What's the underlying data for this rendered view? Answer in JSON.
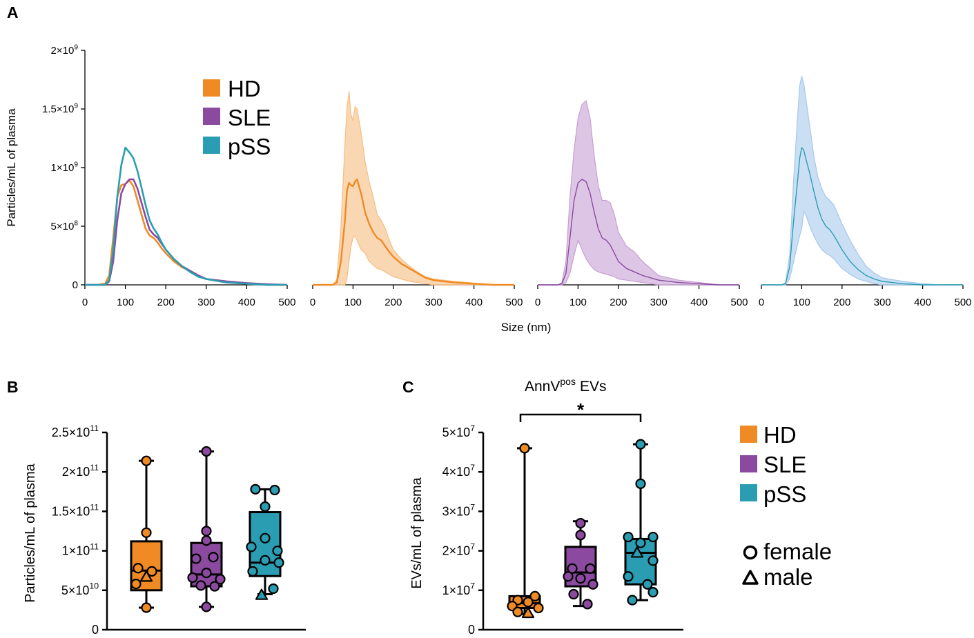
{
  "colors": {
    "HD": "#F08A24",
    "SLE": "#8B4AA0",
    "pSS": "#2A9DB3",
    "bandHD": "#F6BD80",
    "bandSLE": "#C79FD4",
    "bandPSS": "#A6C8EC",
    "axis": "#000000"
  },
  "panel_labels": {
    "a": "A",
    "b": "B",
    "c": "C"
  },
  "legend_A": {
    "entries": [
      "HD",
      "SLE",
      "pSS"
    ]
  },
  "legend_C": {
    "entries": [
      "HD",
      "SLE",
      "pSS"
    ],
    "shape_female": "female",
    "shape_male": "male"
  },
  "significance": {
    "star": "*"
  },
  "superscript": {
    "e9": "9",
    "e8": "8",
    "e11": "11",
    "e10": "10",
    "e7": "7",
    "pos": "pos"
  },
  "chart_data": [
    {
      "id": "A-overlay",
      "type": "line",
      "xlabel": "Size (nm)",
      "ylabel": "Particles/mL of plasma",
      "xlim": [
        0,
        500
      ],
      "ylim": [
        0,
        2000000000
      ],
      "xticks": [
        "0",
        "100",
        "200",
        "300",
        "400",
        "500"
      ],
      "yticks": [
        {
          "value": 0,
          "label": "0"
        },
        {
          "value": 500000000,
          "mant": "5×10",
          "exp": "8"
        },
        {
          "value": 1000000000,
          "mant": "1×10",
          "exp": "9"
        },
        {
          "value": 1500000000,
          "mant": "1.5×10",
          "exp": "9"
        },
        {
          "value": 2000000000,
          "mant": "2×10",
          "exp": "9"
        }
      ],
      "x": [
        0,
        30,
        50,
        60,
        70,
        80,
        90,
        100,
        110,
        120,
        130,
        140,
        150,
        160,
        170,
        180,
        190,
        200,
        220,
        240,
        260,
        280,
        300,
        350,
        400,
        450,
        500
      ],
      "series": [
        {
          "name": "HD",
          "values": [
            0,
            0,
            0.01,
            0.08,
            0.4,
            0.75,
            0.85,
            0.86,
            0.89,
            0.84,
            0.72,
            0.6,
            0.48,
            0.42,
            0.4,
            0.36,
            0.31,
            0.27,
            0.2,
            0.15,
            0.12,
            0.08,
            0.05,
            0.02,
            0.01,
            0,
            0
          ]
        },
        {
          "name": "SLE",
          "values": [
            0,
            0,
            0,
            0.03,
            0.2,
            0.55,
            0.78,
            0.86,
            0.9,
            0.9,
            0.82,
            0.7,
            0.58,
            0.47,
            0.43,
            0.4,
            0.35,
            0.3,
            0.22,
            0.16,
            0.12,
            0.08,
            0.05,
            0.03,
            0.015,
            0.005,
            0
          ]
        },
        {
          "name": "pSS",
          "values": [
            0,
            0,
            0,
            0.04,
            0.3,
            0.75,
            1.02,
            1.17,
            1.13,
            1.08,
            0.97,
            0.83,
            0.68,
            0.55,
            0.48,
            0.43,
            0.36,
            0.3,
            0.22,
            0.16,
            0.11,
            0.07,
            0.05,
            0.02,
            0.01,
            0,
            0
          ]
        }
      ]
    },
    {
      "id": "A-HD",
      "type": "area",
      "xlim": [
        0,
        500
      ],
      "ylim": [
        0,
        2000000000
      ],
      "xticks": [
        "0",
        "100",
        "200",
        "300",
        "400",
        "500"
      ],
      "x": [
        0,
        50,
        60,
        70,
        80,
        85,
        90,
        95,
        100,
        105,
        110,
        120,
        130,
        140,
        150,
        160,
        170,
        180,
        190,
        200,
        220,
        240,
        260,
        280,
        300,
        350,
        400,
        450,
        500
      ],
      "series": [
        {
          "name": "mean",
          "values": [
            0,
            0,
            0.02,
            0.2,
            0.55,
            0.8,
            0.87,
            0.85,
            0.84,
            0.88,
            0.9,
            0.78,
            0.62,
            0.52,
            0.45,
            0.4,
            0.38,
            0.33,
            0.28,
            0.24,
            0.18,
            0.14,
            0.1,
            0.06,
            0.04,
            0.02,
            0.01,
            0,
            0
          ]
        },
        {
          "name": "upper",
          "values": [
            0,
            0,
            0.05,
            0.5,
            1.2,
            1.5,
            1.65,
            1.45,
            1.4,
            1.52,
            1.5,
            1.3,
            1.05,
            0.88,
            0.75,
            0.6,
            0.55,
            0.48,
            0.38,
            0.3,
            0.22,
            0.16,
            0.11,
            0.07,
            0.05,
            0.03,
            0.015,
            0,
            0
          ]
        },
        {
          "name": "lower",
          "values": [
            0,
            0,
            0,
            0,
            0,
            0.05,
            0.2,
            0.33,
            0.4,
            0.42,
            0.38,
            0.3,
            0.27,
            0.2,
            0.17,
            0.14,
            0.13,
            0.11,
            0.09,
            0.07,
            0.05,
            0.03,
            0.02,
            0.01,
            0,
            0,
            0,
            0,
            0
          ]
        }
      ]
    },
    {
      "id": "A-SLE",
      "type": "area",
      "xlim": [
        0,
        500
      ],
      "ylim": [
        0,
        2000000000
      ],
      "xticks": [
        "0",
        "100",
        "200",
        "300",
        "400",
        "500"
      ],
      "x": [
        0,
        50,
        60,
        70,
        80,
        90,
        100,
        110,
        120,
        130,
        140,
        150,
        160,
        170,
        180,
        190,
        200,
        220,
        240,
        260,
        280,
        300,
        350,
        400,
        450,
        500
      ],
      "series": [
        {
          "name": "mean",
          "values": [
            0,
            0,
            0.01,
            0.1,
            0.4,
            0.72,
            0.87,
            0.9,
            0.88,
            0.78,
            0.62,
            0.48,
            0.4,
            0.38,
            0.34,
            0.27,
            0.2,
            0.14,
            0.11,
            0.08,
            0.06,
            0.04,
            0.02,
            0.01,
            0,
            0
          ]
        },
        {
          "name": "upper",
          "values": [
            0,
            0,
            0.02,
            0.2,
            0.75,
            1.15,
            1.42,
            1.54,
            1.57,
            1.42,
            1.1,
            0.85,
            0.72,
            0.72,
            0.7,
            0.6,
            0.45,
            0.33,
            0.28,
            0.2,
            0.14,
            0.08,
            0.04,
            0.02,
            0,
            0
          ]
        },
        {
          "name": "lower",
          "values": [
            0,
            0,
            0,
            0.02,
            0.1,
            0.25,
            0.38,
            0.3,
            0.22,
            0.17,
            0.13,
            0.11,
            0.1,
            0.09,
            0.08,
            0.07,
            0.05,
            0.04,
            0.03,
            0.02,
            0.01,
            0,
            0,
            0,
            0,
            0
          ]
        }
      ]
    },
    {
      "id": "A-pSS",
      "type": "area",
      "xlim": [
        0,
        500
      ],
      "ylim": [
        0,
        2000000000
      ],
      "xticks": [
        "0",
        "100",
        "200",
        "300",
        "400",
        "500"
      ],
      "x": [
        0,
        50,
        60,
        70,
        80,
        90,
        95,
        100,
        105,
        110,
        120,
        130,
        140,
        150,
        160,
        170,
        180,
        190,
        200,
        220,
        240,
        260,
        280,
        300,
        350,
        400,
        450,
        500
      ],
      "series": [
        {
          "name": "mean",
          "values": [
            0,
            0,
            0.01,
            0.15,
            0.55,
            0.9,
            1.08,
            1.17,
            1.15,
            1.08,
            0.95,
            0.8,
            0.66,
            0.56,
            0.5,
            0.47,
            0.42,
            0.36,
            0.3,
            0.2,
            0.13,
            0.08,
            0.05,
            0.03,
            0.01,
            0,
            0,
            0
          ]
        },
        {
          "name": "upper",
          "values": [
            0,
            0,
            0.02,
            0.25,
            0.9,
            1.45,
            1.7,
            1.78,
            1.72,
            1.6,
            1.35,
            1.1,
            0.92,
            0.82,
            0.75,
            0.72,
            0.68,
            0.6,
            0.52,
            0.38,
            0.26,
            0.16,
            0.1,
            0.06,
            0.03,
            0.01,
            0,
            0
          ]
        },
        {
          "name": "lower",
          "values": [
            0,
            0,
            0,
            0.05,
            0.2,
            0.35,
            0.42,
            0.48,
            0.62,
            0.6,
            0.5,
            0.42,
            0.35,
            0.3,
            0.27,
            0.25,
            0.22,
            0.18,
            0.14,
            0.09,
            0.05,
            0.03,
            0.01,
            0,
            0,
            0,
            0,
            0
          ]
        }
      ]
    },
    {
      "id": "B",
      "type": "box",
      "ylabel": "Particles/mL of plasma",
      "ylim": [
        0,
        250000000000
      ],
      "yticks": [
        {
          "value": 0,
          "label": "0"
        },
        {
          "value": 50000000000,
          "mant": "5×10",
          "exp": "10"
        },
        {
          "value": 100000000000,
          "mant": "1×10",
          "exp": "11"
        },
        {
          "value": 150000000000,
          "mant": "1.5×10",
          "exp": "11"
        },
        {
          "value": 200000000000,
          "mant": "2×10",
          "exp": "11"
        },
        {
          "value": 250000000000,
          "mant": "2.5×10",
          "exp": "11"
        }
      ],
      "unit": 10000000000.0,
      "groups": [
        {
          "name": "HD",
          "min": 2.8,
          "q1": 5.0,
          "median": 7.5,
          "q3": 11.2,
          "max": 21.4,
          "points": [
            {
              "y": 21.4,
              "dx": 0,
              "s": "f"
            },
            {
              "y": 12.3,
              "dx": 0,
              "s": "f"
            },
            {
              "y": 7.8,
              "dx": -12,
              "s": "f"
            },
            {
              "y": 7.4,
              "dx": 8,
              "s": "f"
            },
            {
              "y": 6.7,
              "dx": 0,
              "s": "m"
            },
            {
              "y": 5.8,
              "dx": -15,
              "s": "f"
            },
            {
              "y": 2.8,
              "dx": 0,
              "s": "f"
            }
          ]
        },
        {
          "name": "SLE",
          "min": 2.9,
          "q1": 5.5,
          "median": 7.0,
          "q3": 11.0,
          "max": 22.6,
          "points": [
            {
              "y": 22.6,
              "dx": 0,
              "s": "f"
            },
            {
              "y": 12.5,
              "dx": 0,
              "s": "f"
            },
            {
              "y": 11.3,
              "dx": 0,
              "s": "f"
            },
            {
              "y": 9.0,
              "dx": -15,
              "s": "f"
            },
            {
              "y": 9.2,
              "dx": 10,
              "s": "f"
            },
            {
              "y": 7.2,
              "dx": 0,
              "s": "f"
            },
            {
              "y": 6.6,
              "dx": -20,
              "s": "f"
            },
            {
              "y": 6.4,
              "dx": 20,
              "s": "f"
            },
            {
              "y": 5.6,
              "dx": -8,
              "s": "f"
            },
            {
              "y": 5.5,
              "dx": 12,
              "s": "f"
            },
            {
              "y": 2.9,
              "dx": 0,
              "s": "f"
            }
          ]
        },
        {
          "name": "pSS",
          "min": 4.5,
          "q1": 6.8,
          "median": 8.5,
          "q3": 14.9,
          "max": 17.8,
          "points": [
            {
              "y": 17.8,
              "dx": -14,
              "s": "f"
            },
            {
              "y": 17.7,
              "dx": 14,
              "s": "f"
            },
            {
              "y": 15.6,
              "dx": 0,
              "s": "f"
            },
            {
              "y": 11.6,
              "dx": 0,
              "s": "f"
            },
            {
              "y": 10.5,
              "dx": -20,
              "s": "f"
            },
            {
              "y": 10.0,
              "dx": 18,
              "s": "f"
            },
            {
              "y": 8.8,
              "dx": 0,
              "s": "f"
            },
            {
              "y": 8.5,
              "dx": 20,
              "s": "f"
            },
            {
              "y": 7.4,
              "dx": -18,
              "s": "f"
            },
            {
              "y": 5.2,
              "dx": 12,
              "s": "f"
            },
            {
              "y": 4.4,
              "dx": -5,
              "s": "m"
            }
          ]
        }
      ]
    },
    {
      "id": "C",
      "type": "box",
      "title_main": "AnnV",
      "title_tail": "EVs",
      "ylabel": "EVs/mL of plasma",
      "ylim": [
        0,
        50000000
      ],
      "yticks": [
        {
          "value": 0,
          "label": "0"
        },
        {
          "value": 10000000,
          "mant": "1×10",
          "exp": "7"
        },
        {
          "value": 20000000,
          "mant": "2×10",
          "exp": "7"
        },
        {
          "value": 30000000,
          "mant": "3×10",
          "exp": "7"
        },
        {
          "value": 40000000,
          "mant": "4×10",
          "exp": "7"
        },
        {
          "value": 50000000,
          "mant": "5×10",
          "exp": "7"
        }
      ],
      "unit": 10000000.0,
      "groups": [
        {
          "name": "HD",
          "min": 0.4,
          "q1": 0.55,
          "median": 0.67,
          "q3": 0.85,
          "max": 4.6,
          "points": [
            {
              "y": 4.6,
              "dx": 0,
              "s": "f"
            },
            {
              "y": 0.85,
              "dx": 15,
              "s": "f"
            },
            {
              "y": 0.75,
              "dx": -10,
              "s": "f"
            },
            {
              "y": 0.7,
              "dx": 5,
              "s": "f"
            },
            {
              "y": 0.6,
              "dx": -18,
              "s": "f"
            },
            {
              "y": 0.45,
              "dx": -10,
              "s": "f"
            },
            {
              "y": 0.42,
              "dx": 5,
              "s": "m"
            },
            {
              "y": 0.55,
              "dx": 20,
              "s": "f"
            }
          ]
        },
        {
          "name": "SLE",
          "min": 0.6,
          "q1": 1.1,
          "median": 1.45,
          "q3": 2.1,
          "max": 2.75,
          "points": [
            {
              "y": 2.7,
              "dx": 0,
              "s": "f"
            },
            {
              "y": 2.4,
              "dx": 0,
              "s": "f"
            },
            {
              "y": 1.55,
              "dx": -12,
              "s": "f"
            },
            {
              "y": 1.55,
              "dx": 14,
              "s": "f"
            },
            {
              "y": 1.35,
              "dx": -18,
              "s": "f"
            },
            {
              "y": 1.3,
              "dx": 0,
              "s": "f"
            },
            {
              "y": 1.15,
              "dx": 18,
              "s": "f"
            },
            {
              "y": 0.9,
              "dx": -10,
              "s": "f"
            },
            {
              "y": 0.65,
              "dx": 10,
              "s": "f"
            }
          ]
        },
        {
          "name": "pSS",
          "min": 0.75,
          "q1": 1.15,
          "median": 1.95,
          "q3": 2.3,
          "max": 4.7,
          "points": [
            {
              "y": 4.7,
              "dx": 0,
              "s": "f"
            },
            {
              "y": 3.7,
              "dx": 0,
              "s": "f"
            },
            {
              "y": 2.35,
              "dx": -18,
              "s": "f"
            },
            {
              "y": 2.35,
              "dx": 18,
              "s": "f"
            },
            {
              "y": 2.2,
              "dx": 0,
              "s": "f"
            },
            {
              "y": 1.95,
              "dx": -5,
              "s": "m"
            },
            {
              "y": 1.75,
              "dx": 18,
              "s": "f"
            },
            {
              "y": 1.35,
              "dx": -18,
              "s": "f"
            },
            {
              "y": 1.15,
              "dx": 10,
              "s": "f"
            },
            {
              "y": 0.95,
              "dx": 18,
              "s": "f"
            },
            {
              "y": 0.75,
              "dx": -12,
              "s": "f"
            }
          ]
        }
      ]
    }
  ]
}
